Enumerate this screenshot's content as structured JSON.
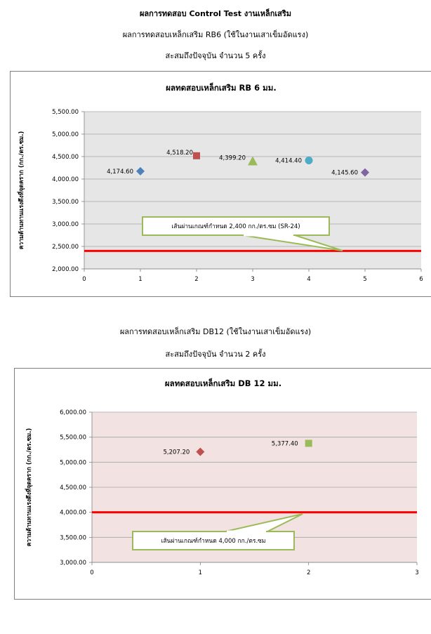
{
  "header": {
    "line1": "ผลการทดสอบ Control Test งานเหล็กเสริม",
    "line2": "ผลการทดสอบเหล็กเสริม RB6 (ใช้ในงานเสาเข็มอัดแรง)",
    "line3": "สะสมถึงปัจจุบัน จำนวน 5 ครั้ง",
    "line4": "ผลการทดสอบเหล็กเสริม DB12 (ใช้ในงานเสาเข็มอัดแรง)",
    "line5": "สะสมถึงปัจจุบัน จำนวน 2 ครั้ง"
  },
  "chart_data": [
    {
      "type": "scatter",
      "title": "ผลทดสอบเหล็กเสริม RB 6 มม.",
      "ylabel": "ความต้านทานแรงดึงที่จุดคราก (กก./ตร.ซม.)",
      "xlabel": "",
      "xlim": [
        0,
        6
      ],
      "ylim": [
        2000,
        5500
      ],
      "xticks": [
        "0",
        "1",
        "2",
        "3",
        "4",
        "5",
        "6"
      ],
      "yticks": [
        "2,000.00",
        "2,500.00",
        "3,000.00",
        "3,500.00",
        "4,000.00",
        "4,500.00",
        "5,000.00",
        "5,500.00"
      ],
      "background": "#e6e6e6",
      "grid": true,
      "points": [
        {
          "x": 1,
          "y": 4174.6,
          "label": "4,174.60",
          "marker": "diamond",
          "color": "#4f81bd"
        },
        {
          "x": 2,
          "y": 4518.2,
          "label": "4,518.20",
          "marker": "square",
          "color": "#c0504d"
        },
        {
          "x": 3,
          "y": 4399.2,
          "label": "4,399.20",
          "marker": "triangle",
          "color": "#9bbb59"
        },
        {
          "x": 4,
          "y": 4414.4,
          "label": "4,414.40",
          "marker": "circle",
          "color": "#4bacc6"
        },
        {
          "x": 5,
          "y": 4145.6,
          "label": "4,145.60",
          "marker": "diamond",
          "color": "#8064a2"
        }
      ],
      "threshold": {
        "y": 2400,
        "color": "#ff0000",
        "label": "เส้นผ่านเกณฑ์กำหนด 2,400 กก./ตร.ซม (SR-24)"
      }
    },
    {
      "type": "scatter",
      "title": "ผลทดสอบเหล็กเสริม DB 12 มม.",
      "ylabel": "ความต้านทานแรงดึงที่จุดคราก (กก./ตร.ซม.)",
      "xlabel": "",
      "xlim": [
        0,
        3
      ],
      "ylim": [
        3000,
        6000
      ],
      "xticks": [
        "0",
        "1",
        "2",
        "3"
      ],
      "yticks": [
        "3,000.00",
        "3,500.00",
        "4,000.00",
        "4,500.00",
        "5,000.00",
        "5,500.00",
        "6,000.00"
      ],
      "background": "#f2e2e2",
      "grid": true,
      "points": [
        {
          "x": 1,
          "y": 5207.2,
          "label": "5,207.20",
          "marker": "diamond",
          "color": "#c0504d"
        },
        {
          "x": 2,
          "y": 5377.4,
          "label": "5,377.40",
          "marker": "square",
          "color": "#9bbb59"
        }
      ],
      "threshold": {
        "y": 4000,
        "color": "#ff0000",
        "label": "เส้นผ่านเกณฑ์กำหนด 4,000 กก./ตร.ซม"
      }
    }
  ]
}
